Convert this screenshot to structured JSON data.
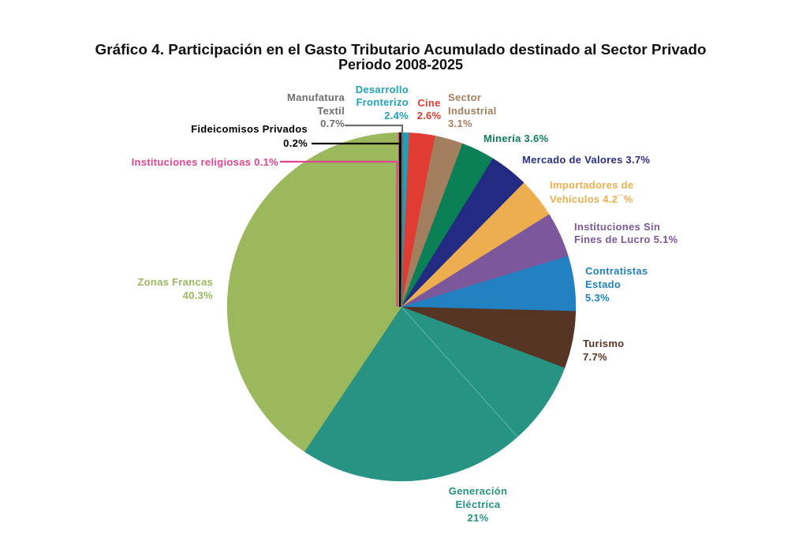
{
  "chart_data": {
    "type": "pie",
    "title": "Gráfico 4. Participación en el Gasto Tributario Acumulado destinado al Sector Privado",
    "subtitle": "Periodo 2008-2025",
    "legend": "none",
    "labels": [
      {
        "name": "Manufatura Textil",
        "value": 0.7,
        "color": "#6d6e71",
        "lines": [
          "Manufatura",
          "Textil",
          "0.7%"
        ]
      },
      {
        "name": "Desarrollo Fronterizo",
        "value": 2.4,
        "color": "#1fa0b8",
        "lines": [
          "Desarrollo",
          "Fronterizo",
          "2.4%"
        ]
      },
      {
        "name": "Cine",
        "value": 2.6,
        "color": "#e03c31",
        "lines": [
          "Cine",
          "2.6%"
        ]
      },
      {
        "name": "Sector Industrial",
        "value": 3.1,
        "color": "#a37f5f",
        "lines": [
          "Sector",
          "Industrial",
          "3.1%"
        ]
      },
      {
        "name": "Minería",
        "value": 3.6,
        "color": "#0b7f55",
        "lines": [
          "Minería 3.6%"
        ]
      },
      {
        "name": "Mercado de Valores",
        "value": 3.7,
        "color": "#2a2d84",
        "lines": [
          "Mercado de Valores 3.7%"
        ]
      },
      {
        "name": "Importadores de Vehículos",
        "value": 4.2,
        "color": "#edae50",
        "lines": [
          "Importadores de",
          "Vehículos 4.2¯%"
        ]
      },
      {
        "name": "Instituciones Sin Fines de Lucro",
        "value": 5.1,
        "color": "#7c579b",
        "lines": [
          "Instituciones Sin",
          "Fines de Lucro 5.1%"
        ]
      },
      {
        "name": "Contratistas Estado",
        "value": 5.3,
        "color": "#2181c1",
        "lines": [
          "Contratistas",
          "Estado",
          "5.3%"
        ]
      },
      {
        "name": "Turismo",
        "value": 7.7,
        "color": "#553424",
        "lines": [
          "Turismo",
          "7.7%"
        ]
      },
      {
        "name": "Generación Eléctrica",
        "value": 21,
        "color": "#279383",
        "lines": [
          "Generación",
          "Eléctrica",
          "21%"
        ]
      },
      {
        "name": "Zonas Francas",
        "value": 40.3,
        "color": "#9bb85d",
        "lines": [
          "Zonas Francas",
          "40.3%"
        ]
      },
      {
        "name": "Fideicomisos Privados",
        "value": 0.2,
        "color": "#000000",
        "lines": [
          "Fideicomisos Privados",
          "0.2%"
        ]
      },
      {
        "name": "Instituciones religiosas",
        "value": 0.1,
        "color": "#e0458e",
        "lines": [
          "Instituciones religiosas 0.1%"
        ]
      }
    ],
    "slices": [
      {
        "value": 0.7,
        "color": "#1fa0b8"
      },
      {
        "value": 2.4,
        "color": "#e03c31"
      },
      {
        "value": 2.6,
        "color": "#a37f5f"
      },
      {
        "value": 3.1,
        "color": "#0b7f55"
      },
      {
        "value": 3.6,
        "color": "#232a82"
      },
      {
        "value": 3.7,
        "color": "#edae50"
      },
      {
        "value": 4.2,
        "color": "#7c579b"
      },
      {
        "value": 5.1,
        "color": "#2181c1"
      },
      {
        "value": 5.3,
        "color": "#553424"
      },
      {
        "value": 7.7,
        "color": "#279383"
      },
      {
        "value": 21,
        "color": "#279383"
      },
      {
        "value": 40.3,
        "color": "#9bb85d"
      },
      {
        "value": 0.1,
        "color": "#e0458e"
      },
      {
        "value": 0.2,
        "color": "#111111"
      }
    ],
    "leader_colors": {
      "manufatura": "#6d6e71",
      "fideicomisos": "#000000",
      "religiosas": "#e0458e"
    }
  }
}
